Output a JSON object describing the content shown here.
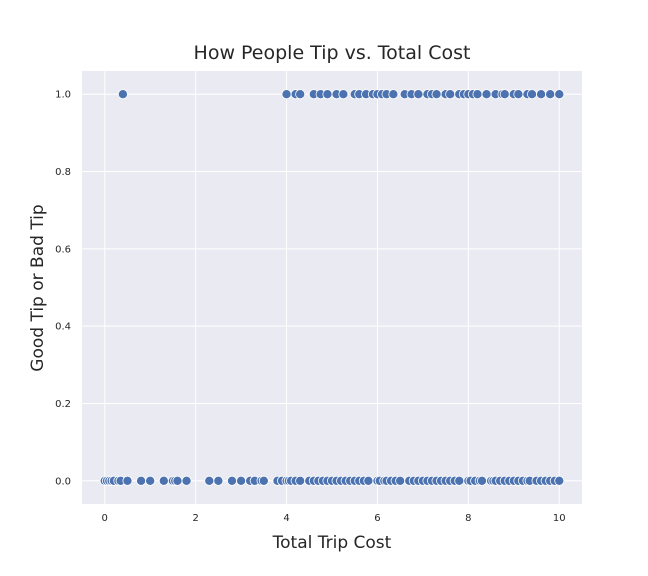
{
  "chart_data": {
    "type": "scatter",
    "title": "How People Tip vs. Total Cost",
    "xlabel": "Total Trip Cost",
    "ylabel": "Good Tip or Bad Tip",
    "xlim": [
      -0.5,
      10.5
    ],
    "ylim": [
      -0.06,
      1.06
    ],
    "xticks": [
      0,
      2,
      4,
      6,
      8,
      10
    ],
    "yticks": [
      0.0,
      0.2,
      0.4,
      0.6,
      0.8,
      1.0
    ],
    "xtick_labels": [
      "0",
      "2",
      "4",
      "6",
      "8",
      "10"
    ],
    "ytick_labels": [
      "0.0",
      "0.2",
      "0.4",
      "0.6",
      "0.8",
      "1.0"
    ],
    "grid": true,
    "background": "#eaeaf2",
    "grid_color": "#ffffff",
    "marker_color": "#4c72b0",
    "marker_edge": "#ffffff",
    "series": [
      {
        "x": [
          0.0,
          0.05,
          0.1,
          0.15,
          0.2,
          0.3,
          0.35,
          0.5,
          0.8,
          1.0,
          1.3,
          1.5,
          1.55,
          1.6,
          1.8,
          2.3,
          2.5,
          2.8,
          3.0,
          3.2,
          3.3,
          3.45,
          3.5,
          3.8,
          3.9,
          4.0,
          4.05,
          4.1,
          4.2,
          4.3,
          4.5,
          4.6,
          4.7,
          4.8,
          4.9,
          5.0,
          5.1,
          5.2,
          5.3,
          5.4,
          5.5,
          5.6,
          5.7,
          5.8,
          6.0,
          6.05,
          6.15,
          6.2,
          6.3,
          6.4,
          6.5,
          6.7,
          6.8,
          6.9,
          7.0,
          7.1,
          7.2,
          7.3,
          7.4,
          7.5,
          7.6,
          7.7,
          7.8,
          8.0,
          8.05,
          8.15,
          8.25,
          8.3,
          8.5,
          8.55,
          8.6,
          8.7,
          8.8,
          8.9,
          9.0,
          9.1,
          9.2,
          9.3,
          9.35,
          9.5,
          9.6,
          9.7,
          9.8,
          9.9,
          10.0,
          0.4,
          4.0,
          4.2,
          4.3,
          4.6,
          4.75,
          4.9,
          5.1,
          5.25,
          5.5,
          5.6,
          5.75,
          5.9,
          6.0,
          6.1,
          6.2,
          6.35,
          6.6,
          6.75,
          6.9,
          7.1,
          7.2,
          7.3,
          7.5,
          7.6,
          7.8,
          7.9,
          8.0,
          8.1,
          8.2,
          8.4,
          8.6,
          8.75,
          8.8,
          9.0,
          9.1,
          9.3,
          9.4,
          9.6,
          9.8,
          10.0
        ],
        "y": [
          0,
          0,
          0,
          0,
          0,
          0,
          0,
          0,
          0,
          0,
          0,
          0,
          0,
          0,
          0,
          0,
          0,
          0,
          0,
          0,
          0,
          0,
          0,
          0,
          0,
          0,
          0,
          0,
          0,
          0,
          0,
          0,
          0,
          0,
          0,
          0,
          0,
          0,
          0,
          0,
          0,
          0,
          0,
          0,
          0,
          0,
          0,
          0,
          0,
          0,
          0,
          0,
          0,
          0,
          0,
          0,
          0,
          0,
          0,
          0,
          0,
          0,
          0,
          0,
          0,
          0,
          0,
          0,
          0,
          0,
          0,
          0,
          0,
          0,
          0,
          0,
          0,
          0,
          0,
          0,
          0,
          0,
          0,
          0,
          0,
          1,
          1,
          1,
          1,
          1,
          1,
          1,
          1,
          1,
          1,
          1,
          1,
          1,
          1,
          1,
          1,
          1,
          1,
          1,
          1,
          1,
          1,
          1,
          1,
          1,
          1,
          1,
          1,
          1,
          1,
          1,
          1,
          1,
          1,
          1,
          1,
          1,
          1,
          1,
          1,
          1
        ]
      }
    ]
  }
}
